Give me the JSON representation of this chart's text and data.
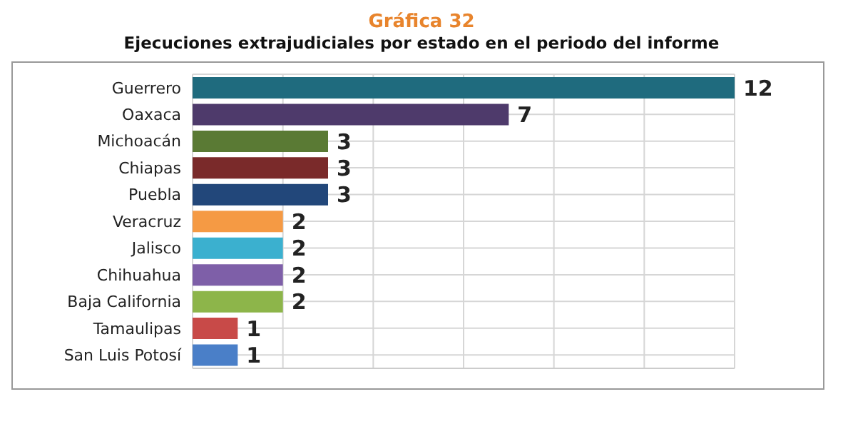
{
  "chart_data": {
    "type": "bar",
    "orientation": "horizontal",
    "title": "Gráfica 32",
    "subtitle": "Ejecuciones extrajudiciales por estado en el periodo del informe",
    "categories": [
      "Guerrero",
      "Oaxaca",
      "Michoacán",
      "Chiapas",
      "Puebla",
      "Veracruz",
      "Jalisco",
      "Chihuahua",
      "Baja California",
      "Tamaulipas",
      "San Luis Potosí"
    ],
    "values": [
      12,
      7,
      3,
      3,
      3,
      2,
      2,
      2,
      2,
      1,
      1
    ],
    "colors": [
      "#1f6b7e",
      "#4e3a6b",
      "#5a7a34",
      "#7a2a2a",
      "#22477a",
      "#f59a44",
      "#3bb0cf",
      "#7e5fa8",
      "#8db54a",
      "#c84a48",
      "#4a7fc8"
    ],
    "tick_labels": "y",
    "grid": true,
    "data_labels": true
  }
}
